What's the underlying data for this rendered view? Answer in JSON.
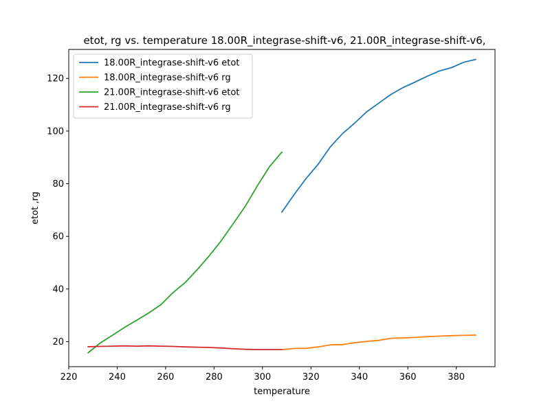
{
  "chart_data": {
    "type": "line",
    "title": "etot, rg vs. temperature 18.00R_integrase-shift-v6, 21.00R_integrase-shift-v6,",
    "xlabel": "temperature",
    "ylabel": "etot ,rg",
    "xlim": [
      220.0,
      396.0
    ],
    "ylim": [
      10.5,
      131.0
    ],
    "xticks": [
      220,
      240,
      260,
      280,
      300,
      320,
      340,
      360,
      380
    ],
    "yticks": [
      20,
      40,
      60,
      80,
      100,
      120
    ],
    "grid": false,
    "legend_position": "top-left",
    "series": [
      {
        "name": "18.00R_integrase-shift-v6 etot",
        "color": "#1f77b4",
        "x": [
          308,
          313,
          318,
          323,
          328,
          333,
          338,
          343,
          348,
          353,
          358,
          363,
          368,
          373,
          378,
          383,
          388
        ],
        "y": [
          69.2,
          75.8,
          82.0,
          87.4,
          94.0,
          99.0,
          103.0,
          107.3,
          110.6,
          113.9,
          116.5,
          118.6,
          120.8,
          122.8,
          124.1,
          126.1,
          127.2
        ]
      },
      {
        "name": "18.00R_integrase-shift-v6 rg",
        "color": "#ff7f0e",
        "x": [
          308,
          313,
          318,
          323,
          328,
          333,
          338,
          343,
          348,
          353,
          358,
          363,
          368,
          373,
          378,
          383,
          388
        ],
        "y": [
          17.0,
          17.4,
          17.5,
          18.0,
          18.8,
          18.9,
          19.6,
          20.1,
          20.5,
          21.3,
          21.4,
          21.6,
          21.9,
          22.1,
          22.3,
          22.4,
          22.5
        ]
      },
      {
        "name": "21.00R_integrase-shift-v6 etot",
        "color": "#2ca02c",
        "x": [
          228,
          233,
          238,
          243,
          248,
          253,
          258,
          263,
          268,
          273,
          278,
          283,
          288,
          293,
          298,
          303,
          308
        ],
        "y": [
          15.8,
          19.5,
          22.4,
          25.4,
          28.1,
          30.9,
          34.0,
          38.6,
          42.4,
          47.3,
          52.6,
          58.4,
          64.9,
          71.6,
          79.4,
          86.6,
          92.0
        ]
      },
      {
        "name": "21.00R_integrase-shift-v6 rg",
        "color": "#d62728",
        "x": [
          228,
          233,
          238,
          243,
          248,
          253,
          258,
          263,
          268,
          273,
          278,
          283,
          288,
          293,
          298,
          303,
          308
        ],
        "y": [
          18.1,
          18.2,
          18.3,
          18.4,
          18.3,
          18.4,
          18.3,
          18.2,
          18.0,
          17.9,
          17.8,
          17.6,
          17.3,
          17.1,
          17.0,
          17.0,
          17.0
        ]
      }
    ]
  }
}
